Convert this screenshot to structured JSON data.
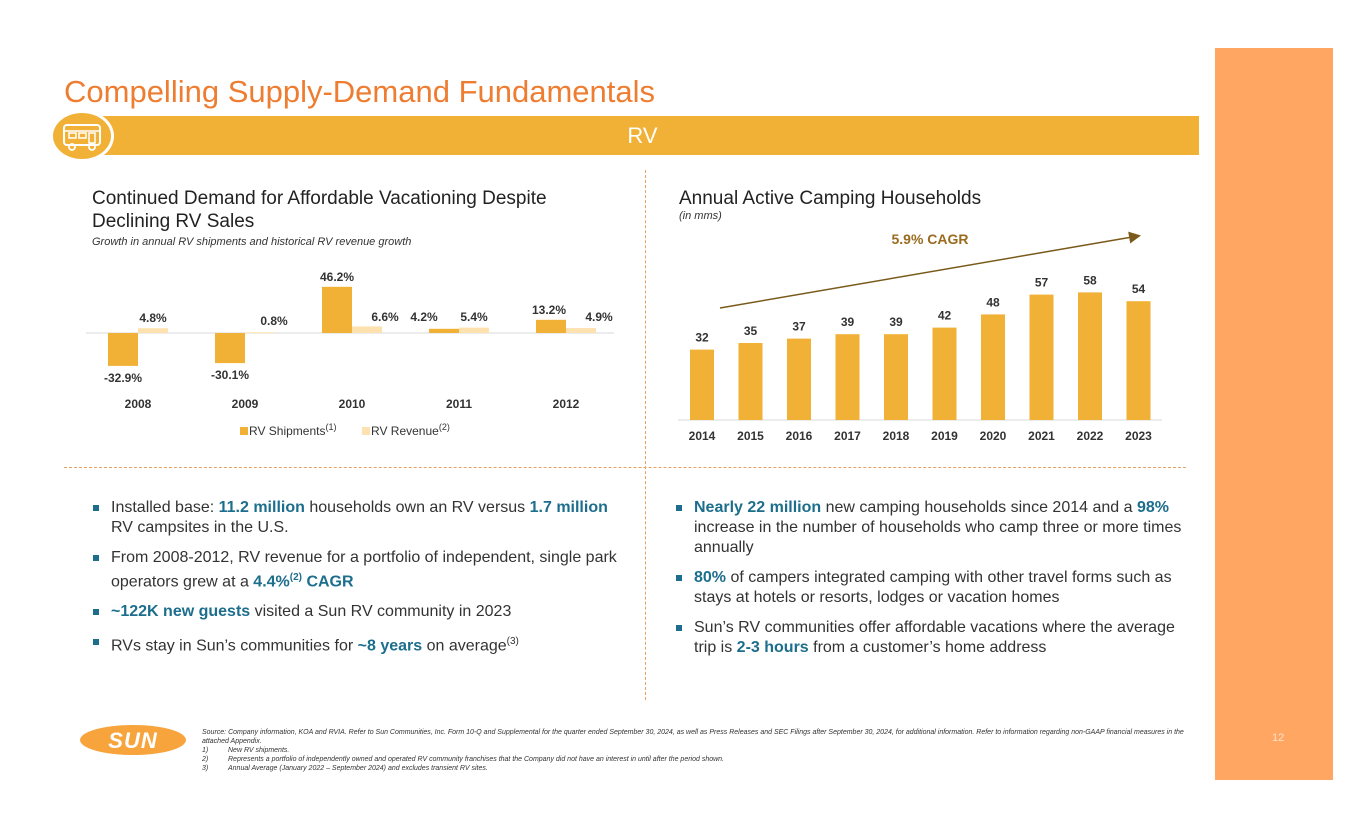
{
  "header": {
    "title": "Compelling Supply-Demand Fundamentals",
    "banner_label": "RV"
  },
  "left_chart": {
    "title_line1": "Continued Demand for Affordable Vacationing Despite",
    "title_line2": "Declining RV Sales",
    "subtitle": "Growth in annual RV shipments and historical RV revenue growth"
  },
  "right_chart": {
    "title": "Annual Active Camping Households",
    "subtitle": "(in mms)",
    "cagr_label": "5.9% CAGR"
  },
  "chart_data": [
    {
      "type": "bar",
      "title": "Continued Demand for Affordable Vacationing Despite Declining RV Sales",
      "subtitle": "Growth in annual RV shipments and historical RV revenue growth",
      "categories": [
        "2008",
        "2009",
        "2010",
        "2011",
        "2012"
      ],
      "series": [
        {
          "name": "RV Shipments",
          "footnote": "(1)",
          "values": [
            -32.9,
            -30.1,
            46.2,
            4.2,
            13.2
          ],
          "labels": [
            "-32.9%",
            "-30.1%",
            "46.2%",
            "4.2%",
            "13.2%"
          ],
          "color": "#f1b136"
        },
        {
          "name": "RV Revenue",
          "footnote": "(2)",
          "values": [
            4.8,
            0.8,
            6.6,
            5.4,
            4.9
          ],
          "labels": [
            "4.8%",
            "0.8%",
            "6.6%",
            "5.4%",
            "4.9%"
          ],
          "color": "#fde2b0"
        }
      ],
      "legend": "bottom",
      "grid": false
    },
    {
      "type": "bar",
      "title": "Annual Active Camping Households",
      "subtitle": "(in mms)",
      "categories": [
        "2014",
        "2015",
        "2016",
        "2017",
        "2018",
        "2019",
        "2020",
        "2021",
        "2022",
        "2023"
      ],
      "values": [
        32,
        35,
        37,
        39,
        39,
        42,
        48,
        57,
        58,
        54
      ],
      "color": "#f1b136",
      "annotation": "5.9% CAGR",
      "grid": false
    }
  ],
  "bullets_left": [
    [
      {
        "t": "Installed base: "
      },
      {
        "t": "11.2 million",
        "h": true
      },
      {
        "t": " households own an RV versus "
      },
      {
        "t": "1.7 million",
        "h": true
      },
      {
        "t": " RV campsites in the U.S."
      }
    ],
    [
      {
        "t": "From 2008-2012, RV revenue for a portfolio of independent, single park operators grew at a "
      },
      {
        "t": "4.4%",
        "h": true
      },
      {
        "t": "(2)",
        "h": true,
        "sup": true
      },
      {
        "t": " CAGR",
        "h": true
      }
    ],
    [
      {
        "t": "~122K new guests",
        "h": true
      },
      {
        "t": " visited a Sun RV community in 2023"
      }
    ],
    [
      {
        "t": "RVs stay in Sun’s communities for "
      },
      {
        "t": "~8 years",
        "h": true
      },
      {
        "t": " on average"
      },
      {
        "t": "(3)",
        "sup": true
      }
    ]
  ],
  "bullets_right": [
    [
      {
        "t": "Nearly 22 million",
        "h": true
      },
      {
        "t": " new camping households since 2014 and a "
      },
      {
        "t": "98%",
        "h": true
      },
      {
        "t": " increase in the number of households who camp three or more times annually"
      }
    ],
    [
      {
        "t": "80%",
        "h": true
      },
      {
        "t": " of campers integrated camping with other travel forms such as stays at hotels or resorts, lodges or vacation homes"
      }
    ],
    [
      {
        "t": "Sun’s RV communities offer affordable vacations where the average trip is "
      },
      {
        "t": "2-3 hours",
        "h": true
      },
      {
        "t": " from a customer’s home address"
      }
    ]
  ],
  "footer": {
    "logo_text": "SUN",
    "source": "Source: Company information, KOA and RVIA. Refer to Sun Communities, Inc. Form 10-Q and Supplemental for the quarter ended September 30, 2024, as well as Press Releases and SEC Filings after September 30, 2024, for additional information. Refer to information regarding non-GAAP financial measures in the attached Appendix.",
    "notes": [
      {
        "num": "1)",
        "text": "New RV shipments."
      },
      {
        "num": "2)",
        "text": "Represents a portfolio of independently owned and operated RV community franchises that the Company did not have an interest in until after the period shown."
      },
      {
        "num": "3)",
        "text": "Annual Average (January 2022 – September 2024) and excludes transient RV sites."
      }
    ],
    "page_number": "12"
  },
  "colors": {
    "accent_orange": "#ee7d31",
    "banner_gold": "#f1b136",
    "highlight_teal": "#1c6e8c",
    "sidebar": "#ffa762"
  }
}
